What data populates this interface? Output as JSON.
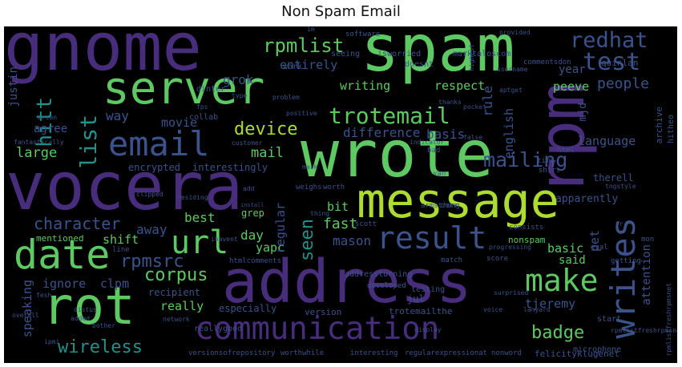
{
  "title": "Non Spam Email",
  "palette": {
    "background": "#000000",
    "green": "#5ec962",
    "teal": "#21918c",
    "blue": "#3b528b",
    "purple": "#440154",
    "lavender": "#472d7b",
    "lime": "#addc30"
  },
  "words": [
    {
      "text": "gnome",
      "color": "#472d7b"
    },
    {
      "text": "spam",
      "color": "#5ec962"
    },
    {
      "text": "rpm",
      "color": "#472d7b"
    },
    {
      "text": "server",
      "color": "#5ec962"
    },
    {
      "text": "wrote",
      "color": "#5ec962"
    },
    {
      "text": "vocera",
      "color": "#472d7b"
    },
    {
      "text": "message",
      "color": "#addc30"
    },
    {
      "text": "address",
      "color": "#472d7b"
    },
    {
      "text": "rot",
      "color": "#5ec962"
    },
    {
      "text": "communication",
      "color": "#472d7b"
    },
    {
      "text": "result",
      "color": "#3b528b"
    },
    {
      "text": "trotemail",
      "color": "#5ec962"
    },
    {
      "text": "email",
      "color": "#3b528b"
    },
    {
      "text": "date",
      "color": "#5ec962"
    },
    {
      "text": "make",
      "color": "#5ec962"
    },
    {
      "text": "writes",
      "color": "#3b528b"
    },
    {
      "text": "url",
      "color": "#5ec962"
    },
    {
      "text": "test",
      "color": "#3b528b"
    },
    {
      "text": "redhat",
      "color": "#3b528b"
    },
    {
      "text": "rpmlist",
      "color": "#5ec962"
    },
    {
      "text": "list",
      "color": "#21918c"
    },
    {
      "text": "hitt",
      "color": "#21918c"
    },
    {
      "text": "mailing",
      "color": "#3b528b"
    },
    {
      "text": "device",
      "color": "#addc30"
    },
    {
      "text": "character",
      "color": "#3b528b"
    },
    {
      "text": "rpmsrc",
      "color": "#3b528b"
    },
    {
      "text": "corpus",
      "color": "#5ec962"
    },
    {
      "text": "wireless",
      "color": "#21918c"
    },
    {
      "text": "badge",
      "color": "#5ec962"
    },
    {
      "text": "seen",
      "color": "#21918c"
    },
    {
      "text": "mail",
      "color": "#5ec962"
    },
    {
      "text": "large",
      "color": "#5ec962"
    },
    {
      "text": "fast",
      "color": "#5ec962"
    },
    {
      "text": "writing",
      "color": "#5ec962"
    },
    {
      "text": "respect",
      "color": "#5ec962"
    },
    {
      "text": "grok",
      "color": "#3b528b"
    },
    {
      "text": "entirely",
      "color": "#3b528b"
    },
    {
      "text": "people",
      "color": "#3b528b"
    },
    {
      "text": "peeve",
      "color": "#5ec962"
    },
    {
      "text": "difference",
      "color": "#3b528b"
    },
    {
      "text": "basis",
      "color": "#3b528b"
    },
    {
      "text": "rule",
      "color": "#3b528b"
    },
    {
      "text": "english",
      "color": "#3b528b"
    },
    {
      "text": "language",
      "color": "#3b528b"
    },
    {
      "text": "movie",
      "color": "#3b528b"
    },
    {
      "text": "agree",
      "color": "#3b528b"
    },
    {
      "text": "way",
      "color": "#3b528b"
    },
    {
      "text": "best",
      "color": "#5ec962"
    },
    {
      "text": "away",
      "color": "#3b528b"
    },
    {
      "text": "shift",
      "color": "#5ec962"
    },
    {
      "text": "day",
      "color": "#5ec962"
    },
    {
      "text": "yapc",
      "color": "#5ec962"
    },
    {
      "text": "mason",
      "color": "#3b528b"
    },
    {
      "text": "regular",
      "color": "#3b528b"
    },
    {
      "text": "bit",
      "color": "#5ec962"
    },
    {
      "text": "basic",
      "color": "#5ec962"
    },
    {
      "text": "said",
      "color": "#5ec962"
    },
    {
      "text": "pet",
      "color": "#3b528b"
    },
    {
      "text": "attention",
      "color": "#3b528b"
    },
    {
      "text": "apparently",
      "color": "#3b528b"
    },
    {
      "text": "ignore",
      "color": "#3b528b"
    },
    {
      "text": "clpm",
      "color": "#3b528b"
    },
    {
      "text": "speaking",
      "color": "#3b528b"
    },
    {
      "text": "really",
      "color": "#5ec962"
    },
    {
      "text": "tjeremy",
      "color": "#3b528b"
    },
    {
      "text": "justin",
      "color": "#3b528b"
    },
    {
      "text": "year",
      "color": "#3b528b"
    },
    {
      "text": "quinlan",
      "color": "#3b528b"
    },
    {
      "text": "therell",
      "color": "#3b528b"
    },
    {
      "text": "encrypted",
      "color": "#3b528b"
    },
    {
      "text": "interestingly",
      "color": "#3b528b"
    },
    {
      "text": "mentioned",
      "color": "#5ec962"
    },
    {
      "text": "grep",
      "color": "#5ec962"
    },
    {
      "text": "especially",
      "color": "#3b528b"
    },
    {
      "text": "recipient",
      "color": "#3b528b"
    },
    {
      "text": "jul",
      "color": "#3b528b"
    },
    {
      "text": "nonspam",
      "color": "#5ec962"
    },
    {
      "text": "trotemailthe",
      "color": "#3b528b"
    },
    {
      "text": "version",
      "color": "#3b528b"
    },
    {
      "text": "testing",
      "color": "#3b528b"
    },
    {
      "text": "developed",
      "color": "#3b528b"
    },
    {
      "text": "addressturning",
      "color": "#3b528b"
    },
    {
      "text": "versionsofrepository",
      "color": "#3b528b"
    },
    {
      "text": "worthwhile",
      "color": "#3b528b"
    },
    {
      "text": "interesting",
      "color": "#3b528b"
    },
    {
      "text": "regularexpressionat",
      "color": "#3b528b"
    },
    {
      "text": "nonword",
      "color": "#3b528b"
    },
    {
      "text": "felicityklugenet",
      "color": "#3b528b"
    },
    {
      "text": "start",
      "color": "#3b528b"
    },
    {
      "text": "score",
      "color": "#3b528b"
    },
    {
      "text": "match",
      "color": "#3b528b"
    },
    {
      "text": "eval",
      "color": "#3b528b"
    },
    {
      "text": "getting",
      "color": "#3b528b"
    },
    {
      "text": "mon",
      "color": "#3b528b"
    },
    {
      "text": "html",
      "color": "#3b528b"
    },
    {
      "text": "time",
      "color": "#3b528b"
    },
    {
      "text": "shirt",
      "color": "#3b528b"
    },
    {
      "text": "microphone",
      "color": "#3b528b"
    },
    {
      "text": "mjd",
      "color": "#3b528b"
    },
    {
      "text": "archive",
      "color": "#3b528b"
    },
    {
      "text": "hitheo",
      "color": "#3b528b"
    },
    {
      "text": "collab",
      "color": "#3b528b"
    },
    {
      "text": "dinter",
      "color": "#3b528b"
    },
    {
      "text": "fps",
      "color": "#3b528b"
    },
    {
      "text": "customer",
      "color": "#3b528b"
    },
    {
      "text": "positive",
      "color": "#3b528b"
    },
    {
      "text": "software",
      "color": "#3b528b"
    },
    {
      "text": "seeing",
      "color": "#3b528b"
    },
    {
      "text": "isworried",
      "color": "#3b528b"
    },
    {
      "text": "marktaloscom",
      "color": "#3b528b"
    },
    {
      "text": "commentsdon",
      "color": "#3b528b"
    },
    {
      "text": "username",
      "color": "#3b528b"
    },
    {
      "text": "work",
      "color": "#3b528b"
    },
    {
      "text": "type",
      "color": "#3b528b"
    },
    {
      "text": "doesnt",
      "color": "#3b528b"
    },
    {
      "text": "im",
      "color": "#3b528b"
    },
    {
      "text": "brian",
      "color": "#3b528b"
    },
    {
      "text": "fantastically",
      "color": "#3b528b"
    },
    {
      "text": "overall",
      "color": "#3b528b"
    },
    {
      "text": "bother",
      "color": "#3b528b"
    },
    {
      "text": "network",
      "color": "#3b528b"
    },
    {
      "text": "added",
      "color": "#3b528b"
    },
    {
      "text": "distus",
      "color": "#3b528b"
    },
    {
      "text": "line",
      "color": "#3b528b"
    },
    {
      "text": "htmlcomments",
      "color": "#3b528b"
    },
    {
      "text": "ihavent",
      "color": "#3b528b"
    },
    {
      "text": "clipped",
      "color": "#3b528b"
    },
    {
      "text": "residing",
      "color": "#3b528b"
    },
    {
      "text": "add",
      "color": "#3b528b"
    },
    {
      "text": "install",
      "color": "#3b528b"
    },
    {
      "text": "weighs",
      "color": "#3b528b"
    },
    {
      "text": "worth",
      "color": "#3b528b"
    },
    {
      "text": "thing",
      "color": "#3b528b"
    },
    {
      "text": "armstrong",
      "color": "#3b528b"
    },
    {
      "text": "dorr",
      "color": "#3b528b"
    },
    {
      "text": "scott",
      "color": "#3b528b"
    },
    {
      "text": "surprised",
      "color": "#3b528b"
    },
    {
      "text": "consists",
      "color": "#3b528b"
    },
    {
      "text": "progressing",
      "color": "#3b528b"
    },
    {
      "text": "display",
      "color": "#3b528b"
    },
    {
      "text": "voice",
      "color": "#3b528b"
    },
    {
      "text": "lanyard",
      "color": "#3b528b"
    },
    {
      "text": "fesh",
      "color": "#3b528b"
    },
    {
      "text": "reallygood",
      "color": "#3b528b"
    },
    {
      "text": "yr",
      "color": "#3b528b"
    },
    {
      "text": "tngstyle",
      "color": "#3b528b"
    },
    {
      "text": "indicator",
      "color": "#3b528b"
    },
    {
      "text": "bad",
      "color": "#3b528b"
    },
    {
      "text": "van",
      "color": "#3b528b"
    },
    {
      "text": "false",
      "color": "#3b528b"
    },
    {
      "text": "mark",
      "color": "#3b528b"
    },
    {
      "text": "thanks",
      "color": "#3b528b"
    },
    {
      "text": "pocket",
      "color": "#3b528b"
    },
    {
      "text": "aptget",
      "color": "#3b528b"
    },
    {
      "text": "problem",
      "color": "#3b528b"
    },
    {
      "text": "highest",
      "color": "#3b528b"
    },
    {
      "text": "provided",
      "color": "#3b528b"
    },
    {
      "text": "rpmlistfreshrpmsnet",
      "color": "#3b528b"
    },
    {
      "text": "rpmlistfreshrpmsnet",
      "color": "#3b528b"
    },
    {
      "text": "ipmi",
      "color": "#3b528b"
    },
    {
      "text": "wrong",
      "color": "#3b528b"
    }
  ]
}
